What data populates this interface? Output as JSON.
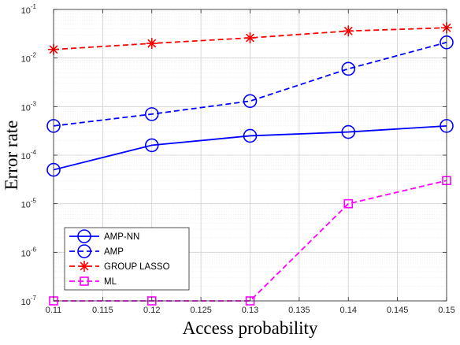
{
  "chart_data": {
    "type": "line",
    "title": "",
    "xlabel": "Access probability",
    "ylabel": "Error rate",
    "x": [
      0.11,
      0.12,
      0.13,
      0.14,
      0.15
    ],
    "xlim": [
      0.11,
      0.15
    ],
    "xticks": [
      "0.11",
      "0.115",
      "0.12",
      "0.125",
      "0.13",
      "0.135",
      "0.14",
      "0.145",
      "0.15"
    ],
    "yscale": "log",
    "ylim": [
      1e-07,
      0.1
    ],
    "yticks": [
      {
        "base": "10",
        "exp": "-7"
      },
      {
        "base": "10",
        "exp": "-6"
      },
      {
        "base": "10",
        "exp": "-5"
      },
      {
        "base": "10",
        "exp": "-4"
      },
      {
        "base": "10",
        "exp": "-3"
      },
      {
        "base": "10",
        "exp": "-2"
      },
      {
        "base": "10",
        "exp": "-1"
      }
    ],
    "grid": true,
    "legend_position": "bottom-left",
    "series": [
      {
        "name": "AMP-NN",
        "values": [
          5e-05,
          0.00016,
          0.00025,
          0.0003,
          0.0004
        ],
        "color": "#0000ff",
        "dash": "solid",
        "marker": "circle"
      },
      {
        "name": "AMP",
        "values": [
          0.0004,
          0.0007,
          0.0013,
          0.006,
          0.021
        ],
        "color": "#0000ff",
        "dash": "dashed",
        "marker": "circle"
      },
      {
        "name": "GROUP LASSO",
        "values": [
          0.015,
          0.02,
          0.026,
          0.036,
          0.042
        ],
        "color": "#ff0000",
        "dash": "dashed",
        "marker": "asterisk"
      },
      {
        "name": "ML",
        "values": [
          1e-07,
          1e-07,
          1e-07,
          1e-05,
          3e-05
        ],
        "color": "#ff00ff",
        "dash": "dashed",
        "marker": "square"
      }
    ]
  }
}
